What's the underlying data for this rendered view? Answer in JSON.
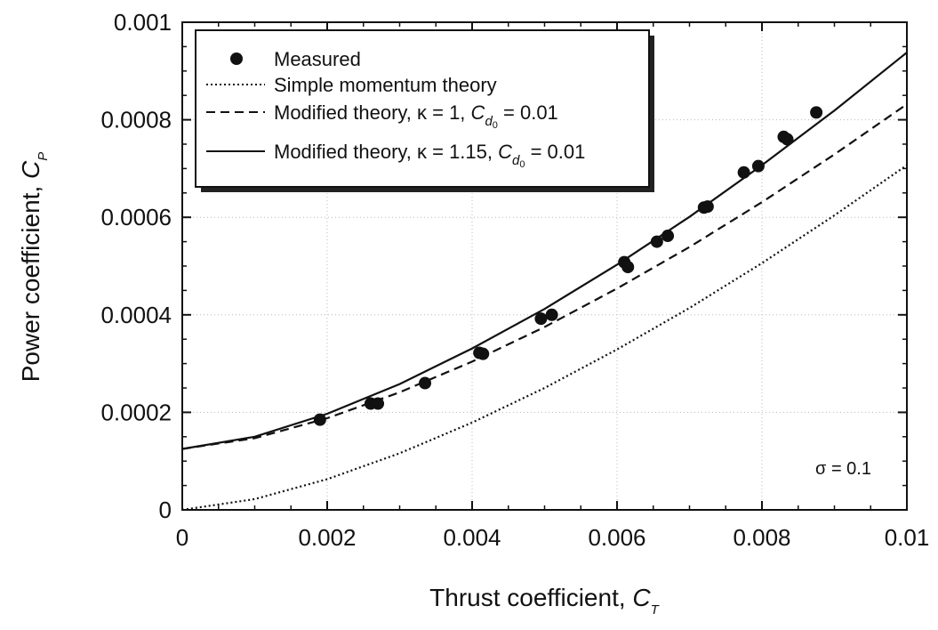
{
  "chart_data": {
    "type": "line",
    "xlabel": "Thrust coefficient, ",
    "xlabel_symbol": "C",
    "xlabel_subscript": "T",
    "ylabel": "Power coefficient, ",
    "ylabel_symbol": "C",
    "ylabel_subscript": "P",
    "xlim": [
      0,
      0.01
    ],
    "ylim": [
      0,
      0.001
    ],
    "x_ticks": [
      "0",
      "0.002",
      "0.004",
      "0.006",
      "0.008",
      "0.01"
    ],
    "x_tick_values": [
      0,
      0.002,
      0.004,
      0.006,
      0.008,
      0.01
    ],
    "y_ticks": [
      "0",
      "0.0002",
      "0.0004",
      "0.0006",
      "0.0008",
      "0.001"
    ],
    "y_tick_values": [
      0,
      0.0002,
      0.0004,
      0.0006,
      0.0008,
      0.001
    ],
    "grid": true,
    "legend_position": "top-left",
    "annotation": "σ = 0.1",
    "series": [
      {
        "name": "Measured",
        "style": "markers",
        "x": [
          0.0019,
          0.0026,
          0.0027,
          0.00335,
          0.0041,
          0.00415,
          0.00495,
          0.0051,
          0.0061,
          0.00615,
          0.00655,
          0.0067,
          0.0072,
          0.00725,
          0.00775,
          0.00795,
          0.0083,
          0.00835,
          0.00875
        ],
        "y": [
          0.000185,
          0.000218,
          0.000218,
          0.00026,
          0.000322,
          0.00032,
          0.000392,
          0.0004,
          0.000508,
          0.000498,
          0.00055,
          0.000562,
          0.00062,
          0.000622,
          0.000692,
          0.000705,
          0.000765,
          0.00076,
          0.000815
        ]
      },
      {
        "name": "Simple momentum theory",
        "style": "dotted",
        "x": [
          0,
          0.001,
          0.002,
          0.003,
          0.004,
          0.005,
          0.006,
          0.007,
          0.008,
          0.009,
          0.01
        ],
        "y": [
          0,
          2.2e-05,
          6.3e-05,
          0.000116,
          0.000179,
          0.00025,
          0.000329,
          0.000414,
          0.000506,
          0.000604,
          0.000707
        ]
      },
      {
        "name_prefix": "Modified theory, κ = 1, ",
        "name_symbol": "C",
        "name_subscript": "d",
        "name_subsubscript": "0",
        "name_suffix": " = 0.01",
        "style": "dashed",
        "x": [
          0,
          0.001,
          0.002,
          0.003,
          0.004,
          0.005,
          0.006,
          0.007,
          0.008,
          0.009,
          0.01
        ],
        "y": [
          0.000125,
          0.000147,
          0.000188,
          0.000241,
          0.000304,
          0.000375,
          0.000454,
          0.000539,
          0.000631,
          0.000729,
          0.000832
        ]
      },
      {
        "name_prefix": "Modified theory, κ = 1.15, ",
        "name_symbol": "C",
        "name_subscript": "d",
        "name_subsubscript": "0",
        "name_suffix": " = 0.01",
        "style": "solid",
        "x": [
          0,
          0.001,
          0.002,
          0.003,
          0.004,
          0.005,
          0.006,
          0.007,
          0.008,
          0.009,
          0.01
        ],
        "y": [
          0.000125,
          0.00015,
          0.000197,
          0.000258,
          0.000331,
          0.000412,
          0.000503,
          0.000601,
          0.000707,
          0.000819,
          0.000938
        ]
      }
    ]
  }
}
